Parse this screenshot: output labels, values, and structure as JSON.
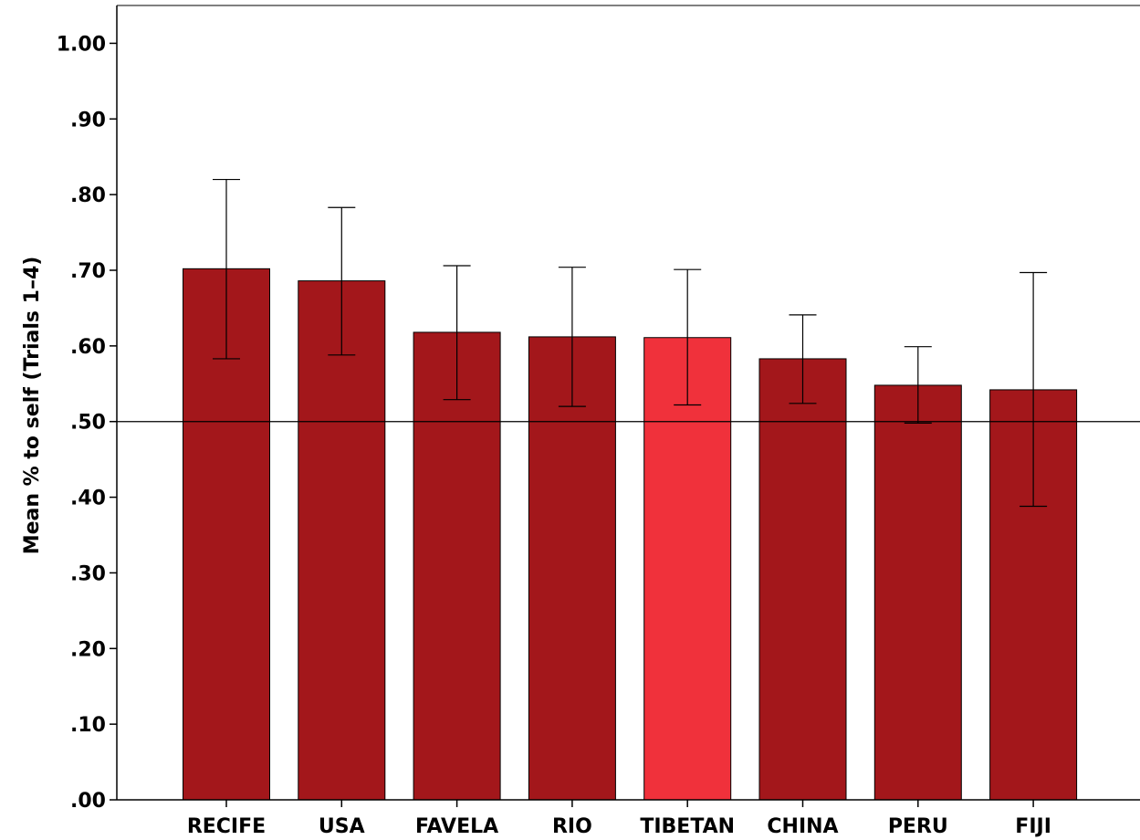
{
  "chart_data": {
    "type": "bar",
    "title": "",
    "xlabel": "",
    "ylabel": "Mean % to self (Trials 1–4)",
    "ylim": [
      0,
      1.05
    ],
    "yticks": [
      0,
      0.1,
      0.2,
      0.3,
      0.4,
      0.5,
      0.6,
      0.7,
      0.8,
      0.9,
      1.0
    ],
    "ytick_labels": [
      ".00",
      ".10",
      ".20",
      ".30",
      ".40",
      ".50",
      ".60",
      ".70",
      ".80",
      ".90",
      "1.00"
    ],
    "reference_line": 0.5,
    "grid": false,
    "categories": [
      "RECIFE",
      "USA",
      "FAVELA",
      "RIO",
      "TIBETAN",
      "CHINA",
      "PERU",
      "FIJI"
    ],
    "values": [
      0.702,
      0.686,
      0.618,
      0.612,
      0.611,
      0.583,
      0.548,
      0.542
    ],
    "error_low": [
      0.583,
      0.588,
      0.529,
      0.52,
      0.522,
      0.524,
      0.498,
      0.388
    ],
    "error_high": [
      0.82,
      0.783,
      0.706,
      0.704,
      0.701,
      0.641,
      0.599,
      0.697
    ],
    "bar_color": "#a3171b",
    "highlight_color": "#f0313b",
    "highlight_category": "TIBETAN"
  }
}
